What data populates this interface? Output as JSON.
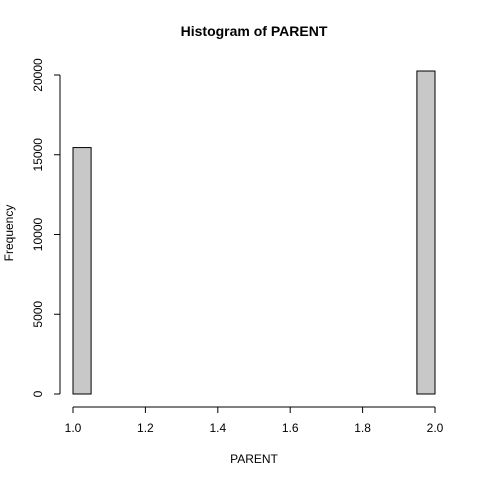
{
  "chart_data": {
    "type": "bar",
    "title": "Histogram of PARENT",
    "xlabel": "PARENT",
    "ylabel": "Frequency",
    "bin_edges": [
      1.0,
      1.05,
      1.1,
      1.15,
      1.2,
      1.25,
      1.3,
      1.35,
      1.4,
      1.45,
      1.5,
      1.55,
      1.6,
      1.65,
      1.7,
      1.75,
      1.8,
      1.85,
      1.9,
      1.95,
      2.0
    ],
    "values": [
      15450,
      0,
      0,
      0,
      0,
      0,
      0,
      0,
      0,
      0,
      0,
      0,
      0,
      0,
      0,
      0,
      0,
      0,
      0,
      20250
    ],
    "xlim": [
      1.0,
      2.0
    ],
    "ylim": [
      0,
      20000
    ],
    "x_ticks": [
      1.0,
      1.2,
      1.4,
      1.6,
      1.8,
      2.0
    ],
    "x_tick_labels": [
      "1.0",
      "1.2",
      "1.4",
      "1.6",
      "1.8",
      "2.0"
    ],
    "y_ticks": [
      0,
      5000,
      10000,
      15000,
      20000
    ],
    "y_tick_labels": [
      "0",
      "5000",
      "10000",
      "15000",
      "20000"
    ],
    "colors": {
      "bar_fill": "#c8c8c8",
      "bar_stroke": "#000000"
    },
    "grid": false
  }
}
